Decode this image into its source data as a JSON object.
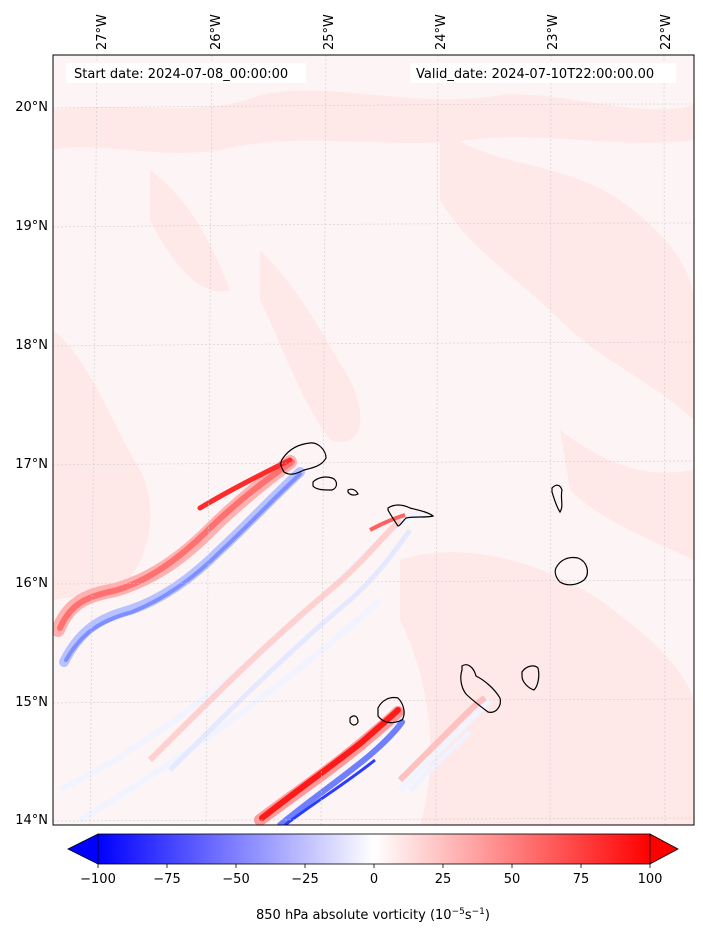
{
  "map": {
    "header": {
      "start": "Start date: 2024-07-08_00:00:00",
      "valid": "Valid_date: 2024-07-10T22:00:00.00"
    },
    "lon_labels": [
      "27°W",
      "26°W",
      "25°W",
      "24°W",
      "23°W",
      "22°W"
    ],
    "lat_labels": [
      "20°N",
      "19°N",
      "18°N",
      "17°N",
      "16°N",
      "15°N",
      "14°N"
    ],
    "colorbar": {
      "label_prefix": "850 hPa absolute vorticity (10",
      "label_exp1": "−5",
      "label_mid": "s",
      "label_exp2": "−1",
      "label_suffix": ")",
      "ticks": [
        "−100",
        "−75",
        "−50",
        "−25",
        "0",
        "25",
        "50",
        "75",
        "100"
      ],
      "min_color": "#0000ff",
      "mid_color": "#ffffff",
      "max_color": "#ff0000"
    },
    "field_colors": {
      "background": "#fdf5f5",
      "light_red": "#ffe6e6",
      "light_blue": "#eef2ff"
    },
    "islands": [
      "Santo Antão",
      "São Vicente",
      "Santa Luzia",
      "São Nicolau",
      "Sal",
      "Boa Vista",
      "Brava",
      "Fogo",
      "Santiago",
      "Maio"
    ]
  }
}
